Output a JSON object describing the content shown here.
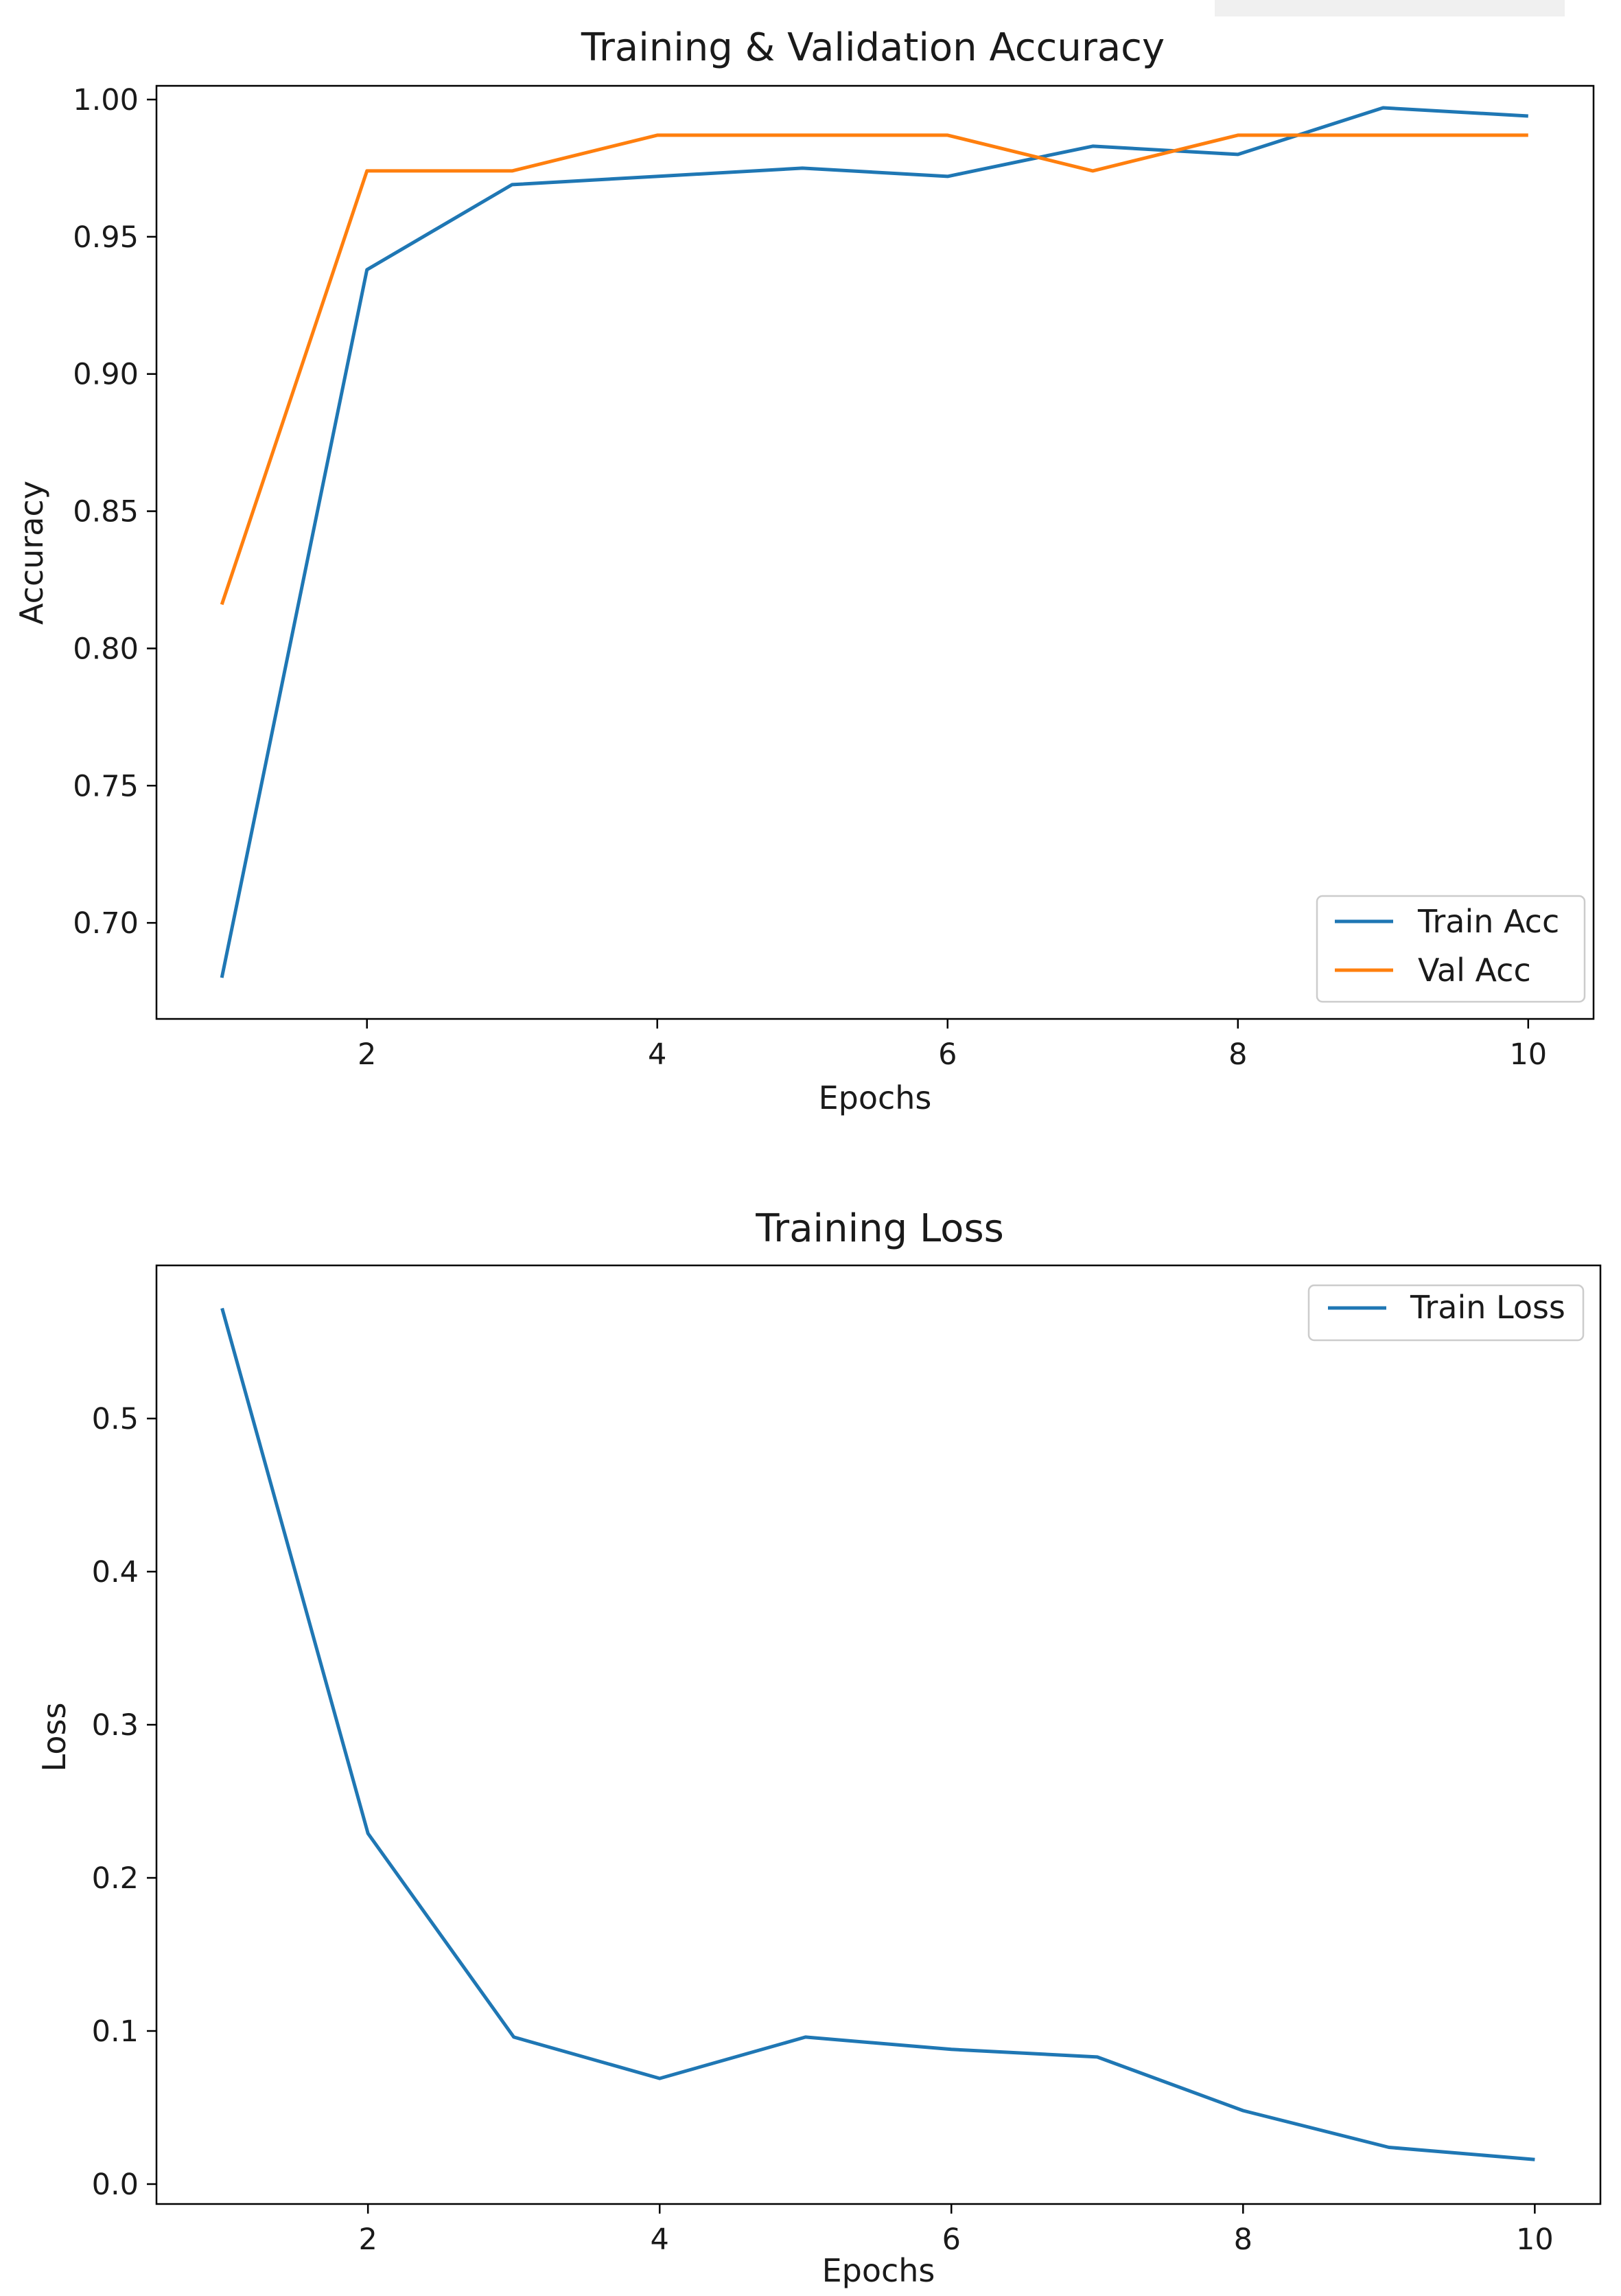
{
  "chart_data": [
    {
      "type": "line",
      "title": "Training & Validation Accuracy",
      "xlabel": "Epochs",
      "ylabel": "Accuracy",
      "xlim": [
        0.55,
        10.45
      ],
      "ylim": [
        0.665,
        1.005
      ],
      "xticks": [
        2,
        4,
        6,
        8,
        10
      ],
      "xtick_labels": [
        "2",
        "4",
        "6",
        "8",
        "10"
      ],
      "yticks": [
        0.7,
        0.75,
        0.8,
        0.85,
        0.9,
        0.95,
        1.0
      ],
      "ytick_labels": [
        "0.70",
        "0.75",
        "0.80",
        "0.85",
        "0.90",
        "0.95",
        "1.00"
      ],
      "grid": false,
      "legend_position": "lower-right",
      "x": [
        1,
        2,
        3,
        4,
        5,
        6,
        7,
        8,
        9,
        10
      ],
      "series": [
        {
          "name": "Train Acc",
          "color": "#1f77b4",
          "values": [
            0.68,
            0.938,
            0.969,
            0.972,
            0.975,
            0.972,
            0.983,
            0.98,
            0.997,
            0.994
          ]
        },
        {
          "name": "Val Acc",
          "color": "#ff7f0e",
          "values": [
            0.816,
            0.974,
            0.974,
            0.987,
            0.987,
            0.987,
            0.974,
            0.987,
            0.987,
            0.987
          ]
        }
      ]
    },
    {
      "type": "line",
      "title": "Training Loss",
      "xlabel": "Epochs",
      "ylabel": "Loss",
      "xlim": [
        0.55,
        10.45
      ],
      "ylim": [
        -0.013,
        0.6
      ],
      "xticks": [
        2,
        4,
        6,
        8,
        10
      ],
      "xtick_labels": [
        "2",
        "4",
        "6",
        "8",
        "10"
      ],
      "yticks": [
        0.0,
        0.1,
        0.2,
        0.3,
        0.4,
        0.5
      ],
      "ytick_labels": [
        "0.0",
        "0.1",
        "0.2",
        "0.3",
        "0.4",
        "0.5"
      ],
      "grid": false,
      "legend_position": "upper-right",
      "x": [
        1,
        2,
        3,
        4,
        5,
        6,
        7,
        8,
        9,
        10
      ],
      "series": [
        {
          "name": "Train Loss",
          "color": "#1f77b4",
          "values": [
            0.572,
            0.229,
            0.096,
            0.069,
            0.096,
            0.088,
            0.083,
            0.048,
            0.024,
            0.016
          ]
        }
      ]
    }
  ]
}
